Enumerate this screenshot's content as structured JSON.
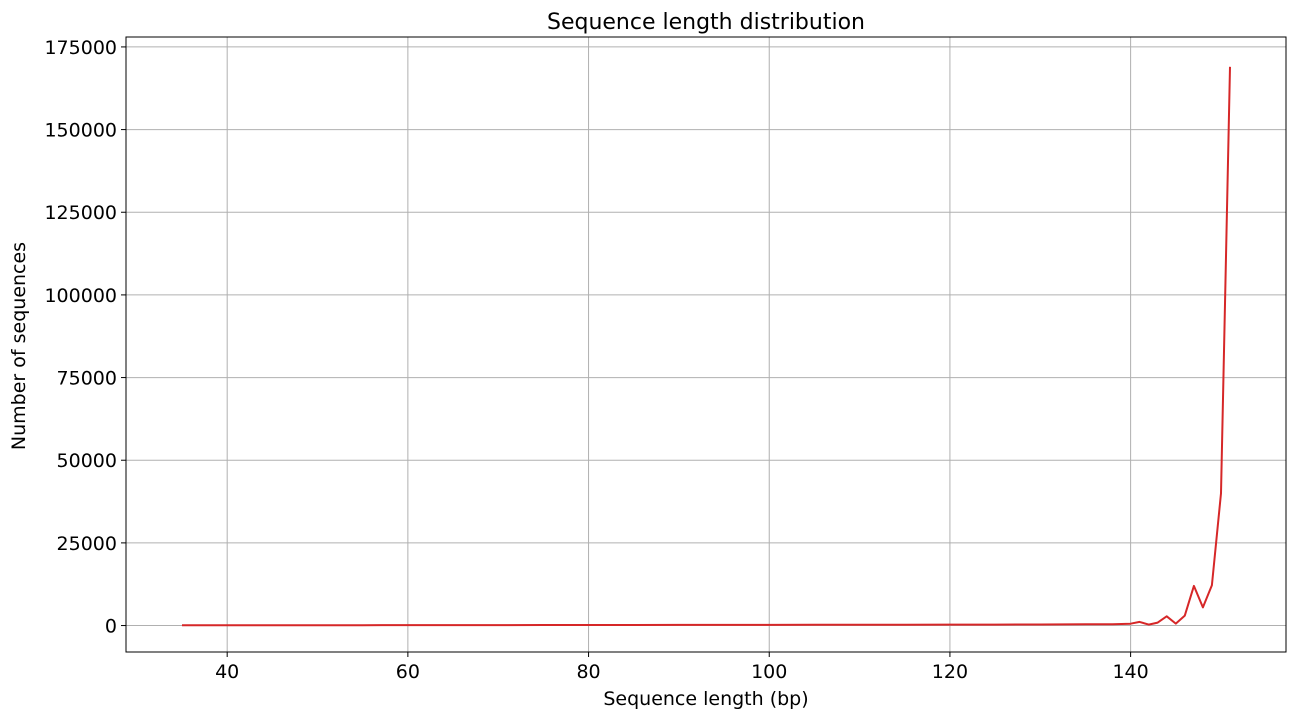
{
  "chart_data": {
    "type": "line",
    "title": "Sequence length distribution",
    "xlabel": "Sequence length (bp)",
    "ylabel": "Number of sequences",
    "xlim": [
      28.8,
      157.2
    ],
    "ylim": [
      -8000,
      178000
    ],
    "xticks": [
      40,
      60,
      80,
      100,
      120,
      140
    ],
    "yticks": [
      0,
      25000,
      50000,
      75000,
      100000,
      125000,
      150000,
      175000
    ],
    "grid": true,
    "line_color": "#d62728",
    "series": [
      {
        "x": [
          35,
          40,
          45,
          50,
          55,
          60,
          65,
          70,
          75,
          80,
          85,
          90,
          95,
          100,
          105,
          110,
          115,
          120,
          125,
          130,
          135,
          138,
          139,
          140,
          141,
          142,
          143,
          144,
          145,
          146,
          147,
          148,
          149,
          150,
          151
        ],
        "values": [
          100,
          80,
          90,
          100,
          110,
          130,
          140,
          150,
          160,
          170,
          180,
          190,
          200,
          210,
          220,
          240,
          260,
          280,
          300,
          330,
          380,
          420,
          480,
          550,
          1100,
          300,
          900,
          2800,
          600,
          3000,
          12000,
          5500,
          12200,
          40000,
          169000
        ]
      }
    ]
  }
}
